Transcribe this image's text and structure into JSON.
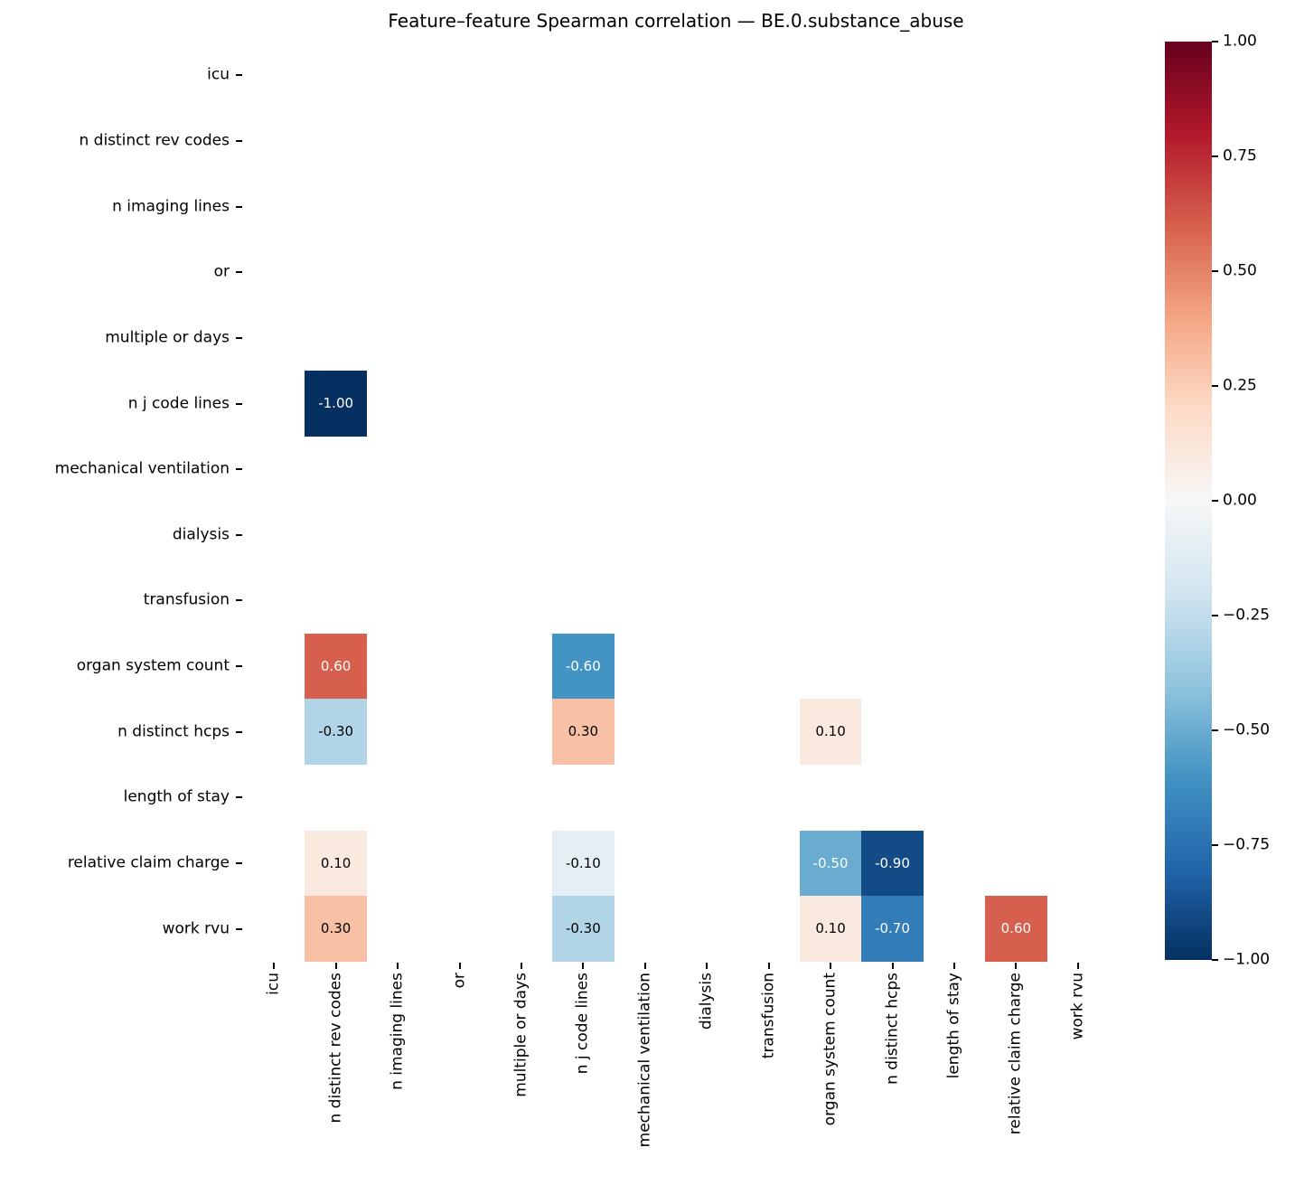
{
  "figure": {
    "background": "#ffffff",
    "text_color": "#000000"
  },
  "chart_data": {
    "type": "heatmap",
    "title": "Feature–feature Spearman correlation — BE.0.substance_abuse",
    "rows": [
      "icu",
      "n distinct rev codes",
      "n imaging lines",
      "or",
      "multiple or days",
      "n j code lines",
      "mechanical ventilation",
      "dialysis",
      "transfusion",
      "organ system count",
      "n distinct hcps",
      "length of stay",
      "relative claim charge",
      "work rvu"
    ],
    "cols": [
      "icu",
      "n distinct rev codes",
      "n imaging lines",
      "or",
      "multiple or days",
      "n j code lines",
      "mechanical ventilation",
      "dialysis",
      "transfusion",
      "organ system count",
      "n distinct hcps",
      "length of stay",
      "relative claim charge",
      "work rvu"
    ],
    "cells": [
      {
        "r": 5,
        "c": 1,
        "row": "n j code lines",
        "col": "n distinct rev codes",
        "v": -1.0,
        "label": "-1.00",
        "bg": "#053061",
        "fg": "#ffffff"
      },
      {
        "r": 9,
        "c": 1,
        "row": "organ system count",
        "col": "n distinct rev codes",
        "v": 0.6,
        "label": "0.60",
        "bg": "#d6604d",
        "fg": "#ffffff"
      },
      {
        "r": 9,
        "c": 5,
        "row": "organ system count",
        "col": "n j code lines",
        "v": -0.6,
        "label": "-0.60",
        "bg": "#4393c3",
        "fg": "#ffffff"
      },
      {
        "r": 10,
        "c": 1,
        "row": "n distinct hcps",
        "col": "n distinct rev codes",
        "v": -0.3,
        "label": "-0.30",
        "bg": "#b1d5e7",
        "fg": "#000000"
      },
      {
        "r": 10,
        "c": 5,
        "row": "n distinct hcps",
        "col": "n j code lines",
        "v": 0.3,
        "label": "0.30",
        "bg": "#f8c0a4",
        "fg": "#000000"
      },
      {
        "r": 10,
        "c": 9,
        "row": "n distinct hcps",
        "col": "organ system count",
        "v": 0.1,
        "label": "0.10",
        "bg": "#fae9df",
        "fg": "#000000"
      },
      {
        "r": 12,
        "c": 1,
        "row": "relative claim charge",
        "col": "n distinct rev codes",
        "v": 0.1,
        "label": "0.10",
        "bg": "#fae9df",
        "fg": "#000000"
      },
      {
        "r": 12,
        "c": 5,
        "row": "relative claim charge",
        "col": "n j code lines",
        "v": -0.1,
        "label": "-0.10",
        "bg": "#e4eef3",
        "fg": "#000000"
      },
      {
        "r": 12,
        "c": 9,
        "row": "relative claim charge",
        "col": "organ system count",
        "v": -0.5,
        "label": "-0.50",
        "bg": "#6aacd0",
        "fg": "#ffffff"
      },
      {
        "r": 12,
        "c": 10,
        "row": "relative claim charge",
        "col": "n distinct hcps",
        "v": -0.9,
        "label": "-0.90",
        "bg": "#134b86",
        "fg": "#ffffff"
      },
      {
        "r": 13,
        "c": 1,
        "row": "work rvu",
        "col": "n distinct rev codes",
        "v": 0.3,
        "label": "0.30",
        "bg": "#f8c0a4",
        "fg": "#000000"
      },
      {
        "r": 13,
        "c": 5,
        "row": "work rvu",
        "col": "n j code lines",
        "v": -0.3,
        "label": "-0.30",
        "bg": "#b1d5e7",
        "fg": "#000000"
      },
      {
        "r": 13,
        "c": 9,
        "row": "work rvu",
        "col": "organ system count",
        "v": 0.1,
        "label": "0.10",
        "bg": "#fae9df",
        "fg": "#000000"
      },
      {
        "r": 13,
        "c": 10,
        "row": "work rvu",
        "col": "n distinct hcps",
        "v": -0.7,
        "label": "-0.70",
        "bg": "#327cb7",
        "fg": "#ffffff"
      },
      {
        "r": 13,
        "c": 12,
        "row": "work rvu",
        "col": "relative claim charge",
        "v": 0.6,
        "label": "0.60",
        "bg": "#d6604d",
        "fg": "#ffffff"
      }
    ],
    "legend_position": "right",
    "grid": false,
    "colorbar": {
      "min": -1.0,
      "max": 1.0,
      "ticks": [
        {
          "value": 1.0,
          "label": "1.00"
        },
        {
          "value": 0.75,
          "label": "0.75"
        },
        {
          "value": 0.5,
          "label": "0.50"
        },
        {
          "value": 0.25,
          "label": "0.25"
        },
        {
          "value": 0.0,
          "label": "0.00"
        },
        {
          "value": -0.25,
          "label": "−0.25"
        },
        {
          "value": -0.5,
          "label": "−0.50"
        },
        {
          "value": -0.75,
          "label": "−0.75"
        },
        {
          "value": -1.0,
          "label": "−1.00"
        }
      ],
      "gradient_top_to_bottom": [
        "#67001f",
        "#b2182b",
        "#d6604d",
        "#f4a582",
        "#fddbc7",
        "#f7f7f7",
        "#d1e5f0",
        "#92c5de",
        "#4393c3",
        "#2166ac",
        "#053061"
      ]
    }
  }
}
